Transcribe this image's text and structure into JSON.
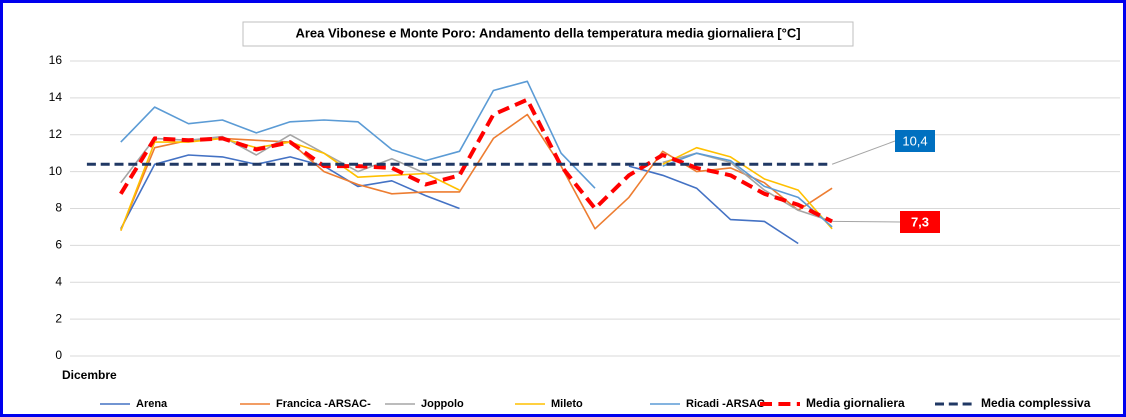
{
  "chart_data": {
    "type": "line",
    "title": "Area Vibonese e Monte Poro: Andamento della temperatura media giornaliera [°C]",
    "categories": [
      "Dicembre",
      null,
      null,
      null,
      null,
      null,
      null,
      null,
      null,
      null,
      null,
      null,
      null,
      null,
      null,
      null,
      null,
      null,
      null,
      null,
      null,
      null,
      null,
      null,
      null,
      null,
      null,
      null,
      null,
      null,
      null
    ],
    "ylim": [
      0,
      16
    ],
    "yticks": [
      0,
      2,
      4,
      6,
      8,
      10,
      12,
      14,
      16
    ],
    "grid": true,
    "series": [
      {
        "name": "Arena",
        "color": "#4472c4",
        "dash": false,
        "width": 1.6,
        "values": [
          null,
          6.9,
          10.4,
          10.9,
          10.8,
          10.4,
          10.8,
          10.3,
          9.2,
          9.5,
          8.7,
          8.0,
          null,
          null,
          null,
          null,
          10.3,
          9.8,
          9.1,
          7.4,
          7.3,
          6.1,
          null,
          null,
          null,
          null,
          null,
          null,
          null,
          null,
          null
        ]
      },
      {
        "name": "Francica -ARSAC-",
        "color": "#ed7d31",
        "dash": false,
        "width": 1.6,
        "values": [
          null,
          6.8,
          11.3,
          11.7,
          11.8,
          11.7,
          11.6,
          10.0,
          9.3,
          8.8,
          8.9,
          8.9,
          11.8,
          13.1,
          10.3,
          6.9,
          8.6,
          11.1,
          10.0,
          10.2,
          9.4,
          7.9,
          9.1,
          null,
          null,
          null,
          null,
          null,
          null,
          null,
          null
        ]
      },
      {
        "name": "Joppolo",
        "color": "#a5a5a5",
        "dash": false,
        "width": 1.6,
        "values": [
          null,
          9.4,
          11.8,
          11.7,
          11.9,
          10.9,
          12.0,
          11.0,
          10.0,
          10.7,
          9.9,
          10.0,
          null,
          null,
          null,
          null,
          null,
          10.5,
          11.0,
          10.5,
          9.0,
          7.9,
          7.3,
          null,
          null,
          null,
          null,
          null,
          null,
          null,
          null
        ]
      },
      {
        "name": "Mileto",
        "color": "#ffc000",
        "dash": false,
        "width": 1.6,
        "values": [
          null,
          6.8,
          11.6,
          11.6,
          11.8,
          11.3,
          11.6,
          11.0,
          9.7,
          9.8,
          9.9,
          9.0,
          null,
          null,
          null,
          null,
          null,
          10.4,
          11.3,
          10.8,
          9.6,
          9.0,
          6.9,
          null,
          null,
          null,
          null,
          null,
          null,
          null,
          null
        ]
      },
      {
        "name": "Ricadi -ARSAC-",
        "color": "#5b9bd5",
        "dash": false,
        "width": 1.6,
        "values": [
          null,
          11.6,
          13.5,
          12.6,
          12.8,
          12.1,
          12.7,
          12.8,
          12.7,
          11.2,
          10.6,
          11.1,
          14.4,
          14.9,
          11.0,
          9.1,
          null,
          10.3,
          11.0,
          10.6,
          9.2,
          8.6,
          7.0,
          null,
          null,
          null,
          null,
          null,
          null,
          null,
          null
        ]
      },
      {
        "name": "Media giornaliera",
        "color": "#ff0000",
        "dash": true,
        "width": 4,
        "values": [
          null,
          8.8,
          11.8,
          11.7,
          11.8,
          11.2,
          11.6,
          10.3,
          10.3,
          10.2,
          9.3,
          9.8,
          13.1,
          13.9,
          10.3,
          8.0,
          9.8,
          10.9,
          10.2,
          9.8,
          8.8,
          8.2,
          7.3,
          null,
          null,
          null,
          null,
          null,
          null,
          null,
          null
        ]
      },
      {
        "name": "Media complessiva",
        "color": "#203864",
        "dash": true,
        "width": 3,
        "values": [
          10.4,
          10.4,
          10.4,
          10.4,
          10.4,
          10.4,
          10.4,
          10.4,
          10.4,
          10.4,
          10.4,
          10.4,
          10.4,
          10.4,
          10.4,
          10.4,
          10.4,
          10.4,
          10.4,
          10.4,
          10.4,
          10.4,
          10.4,
          null,
          null,
          null,
          null,
          null,
          null,
          null,
          null
        ]
      }
    ],
    "annotations": [
      {
        "value": 10.4,
        "label": "10,4",
        "color": "#0070c0"
      },
      {
        "value": 7.3,
        "label": "7,3",
        "color": "#ff0000"
      }
    ]
  }
}
